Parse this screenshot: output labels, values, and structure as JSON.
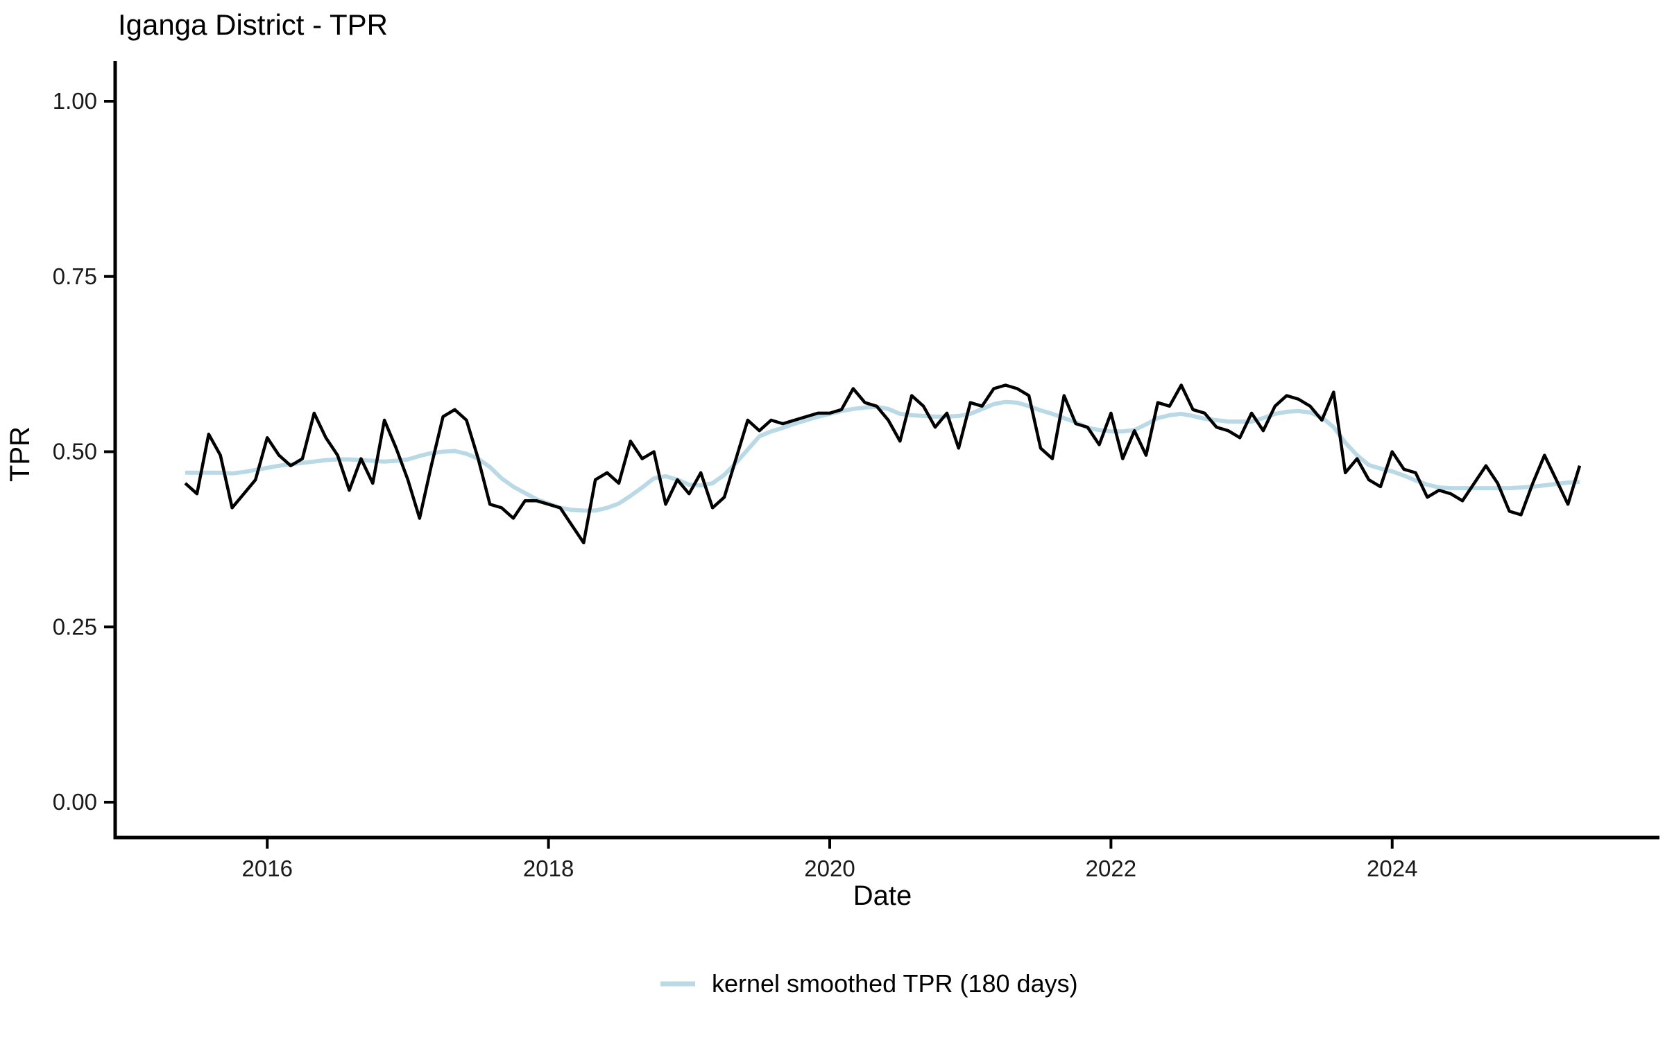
{
  "title": "Iganga District - TPR",
  "axes": {
    "x": {
      "label": "Date",
      "tick_labels": [
        "2016",
        "2018",
        "2020",
        "2022",
        "2024"
      ]
    },
    "y": {
      "label": "TPR",
      "tick_labels": [
        "0.00",
        "0.25",
        "0.50",
        "0.75",
        "1.00"
      ]
    }
  },
  "legend": {
    "position": "bottom-center",
    "items": [
      {
        "label": "kernel smoothed TPR (180 days)",
        "swatch": "line",
        "color": "#b9d9e6"
      }
    ]
  },
  "colors": {
    "raw_series": "#000000",
    "smoothed_series": "#b9d9e6",
    "axis": "#000000",
    "background": "#ffffff"
  },
  "chart_data": {
    "type": "line",
    "title": "Iganga District - TPR",
    "xlabel": "Date",
    "ylabel": "TPR",
    "ylim": [
      0.0,
      1.0
    ],
    "y_ticks": [
      0.0,
      0.25,
      0.5,
      0.75,
      1.0
    ],
    "x_tick_years": [
      2016,
      2018,
      2020,
      2022,
      2024
    ],
    "x_start_month": "2015-06",
    "x_end_month": "2025-05",
    "x_interval": "monthly",
    "grid": false,
    "legend_position": "bottom",
    "series": [
      {
        "name": "TPR",
        "color": "#000000",
        "values": [
          0.455,
          0.44,
          0.525,
          0.495,
          0.42,
          0.44,
          0.46,
          0.52,
          0.495,
          0.48,
          0.49,
          0.555,
          0.52,
          0.495,
          0.445,
          0.49,
          0.455,
          0.545,
          0.505,
          0.46,
          0.405,
          0.48,
          0.55,
          0.56,
          0.545,
          0.49,
          0.425,
          0.42,
          0.405,
          0.43,
          0.43,
          0.425,
          0.42,
          0.395,
          0.37,
          0.46,
          0.47,
          0.455,
          0.515,
          0.49,
          0.5,
          0.425,
          0.46,
          0.44,
          0.47,
          0.42,
          0.435,
          0.49,
          0.545,
          0.53,
          0.545,
          0.54,
          0.545,
          0.55,
          0.555,
          0.555,
          0.56,
          0.59,
          0.57,
          0.565,
          0.545,
          0.515,
          0.58,
          0.565,
          0.535,
          0.555,
          0.505,
          0.57,
          0.565,
          0.59,
          0.595,
          0.59,
          0.58,
          0.505,
          0.49,
          0.58,
          0.54,
          0.535,
          0.51,
          0.555,
          0.49,
          0.53,
          0.495,
          0.57,
          0.565,
          0.595,
          0.56,
          0.555,
          0.535,
          0.53,
          0.52,
          0.555,
          0.53,
          0.565,
          0.58,
          0.575,
          0.565,
          0.545,
          0.585,
          0.47,
          0.49,
          0.46,
          0.45,
          0.5,
          0.475,
          0.47,
          0.435,
          0.445,
          0.44,
          0.43,
          0.455,
          0.48,
          0.455,
          0.415,
          0.41,
          0.455,
          0.495,
          0.46,
          0.425,
          0.48
        ]
      },
      {
        "name": "kernel smoothed TPR (180 days)",
        "color": "#b9d9e6",
        "values": [
          0.47,
          0.47,
          0.47,
          0.47,
          0.469,
          0.471,
          0.474,
          0.477,
          0.48,
          0.482,
          0.484,
          0.486,
          0.488,
          0.489,
          0.489,
          0.488,
          0.487,
          0.486,
          0.487,
          0.489,
          0.494,
          0.498,
          0.5,
          0.501,
          0.497,
          0.49,
          0.478,
          0.462,
          0.45,
          0.441,
          0.432,
          0.426,
          0.42,
          0.417,
          0.416,
          0.416,
          0.42,
          0.426,
          0.437,
          0.449,
          0.462,
          0.465,
          0.46,
          0.453,
          0.452,
          0.455,
          0.467,
          0.484,
          0.503,
          0.522,
          0.529,
          0.534,
          0.54,
          0.545,
          0.55,
          0.554,
          0.558,
          0.561,
          0.563,
          0.564,
          0.561,
          0.554,
          0.552,
          0.551,
          0.55,
          0.55,
          0.551,
          0.554,
          0.561,
          0.568,
          0.571,
          0.57,
          0.565,
          0.559,
          0.554,
          0.548,
          0.542,
          0.534,
          0.531,
          0.529,
          0.529,
          0.531,
          0.539,
          0.548,
          0.552,
          0.554,
          0.551,
          0.547,
          0.545,
          0.543,
          0.543,
          0.543,
          0.548,
          0.554,
          0.557,
          0.558,
          0.556,
          0.549,
          0.535,
          0.513,
          0.495,
          0.481,
          0.476,
          0.472,
          0.466,
          0.459,
          0.453,
          0.449,
          0.448,
          0.448,
          0.448,
          0.448,
          0.448,
          0.448,
          0.449,
          0.45,
          0.452,
          0.454,
          0.456,
          0.457
        ]
      }
    ]
  }
}
